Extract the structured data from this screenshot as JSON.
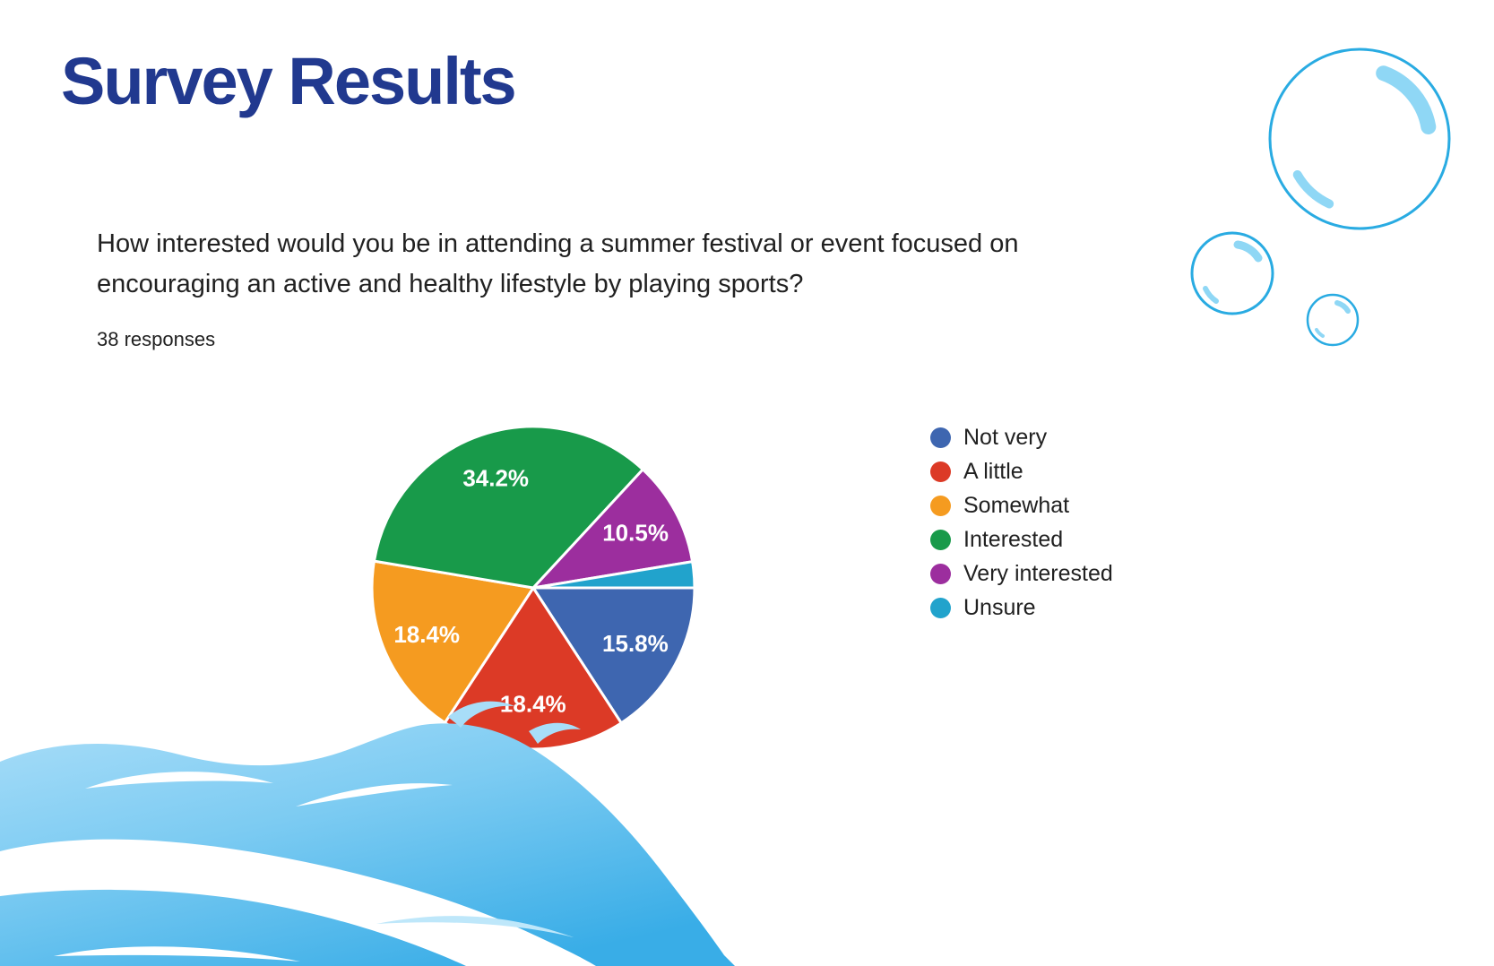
{
  "page": {
    "title": "Survey Results"
  },
  "question": {
    "text": "How interested would you be in attending a summer festival or event focused on encouraging an active and healthy lifestyle by playing sports?",
    "responses_count": "38 responses"
  },
  "chart_data": {
    "type": "pie",
    "title": "How interested would you be in attending a summer festival or event focused on encouraging an active and healthy lifestyle by playing sports?",
    "total_responses": 38,
    "legend_position": "right",
    "label_format": "percent",
    "min_label_percent": 3,
    "start_angle_deg": 0,
    "direction": "clockwise",
    "slices": [
      {
        "label": "Not very",
        "percent": 15.8,
        "color": "#3E66B0"
      },
      {
        "label": "A little",
        "percent": 18.4,
        "color": "#DC3A26"
      },
      {
        "label": "Somewhat",
        "percent": 18.4,
        "color": "#F59B20"
      },
      {
        "label": "Interested",
        "percent": 34.2,
        "color": "#189A4A"
      },
      {
        "label": "Very interested",
        "percent": 10.5,
        "color": "#9C2E9E"
      },
      {
        "label": "Unsure",
        "percent": 2.6,
        "color": "#21A3CC"
      }
    ]
  },
  "theme": {
    "background": "#FFFFFF",
    "title_color": "#21398F",
    "text_color": "#212121",
    "pie_label_color": "#FFFFFF",
    "bubble_stroke": "#29ABE2",
    "bubble_highlight": "#8FD7F5",
    "wave_light": "#A8DDF8",
    "wave_mid": "#7CCBF2",
    "wave_deep": "#39ADE7"
  }
}
